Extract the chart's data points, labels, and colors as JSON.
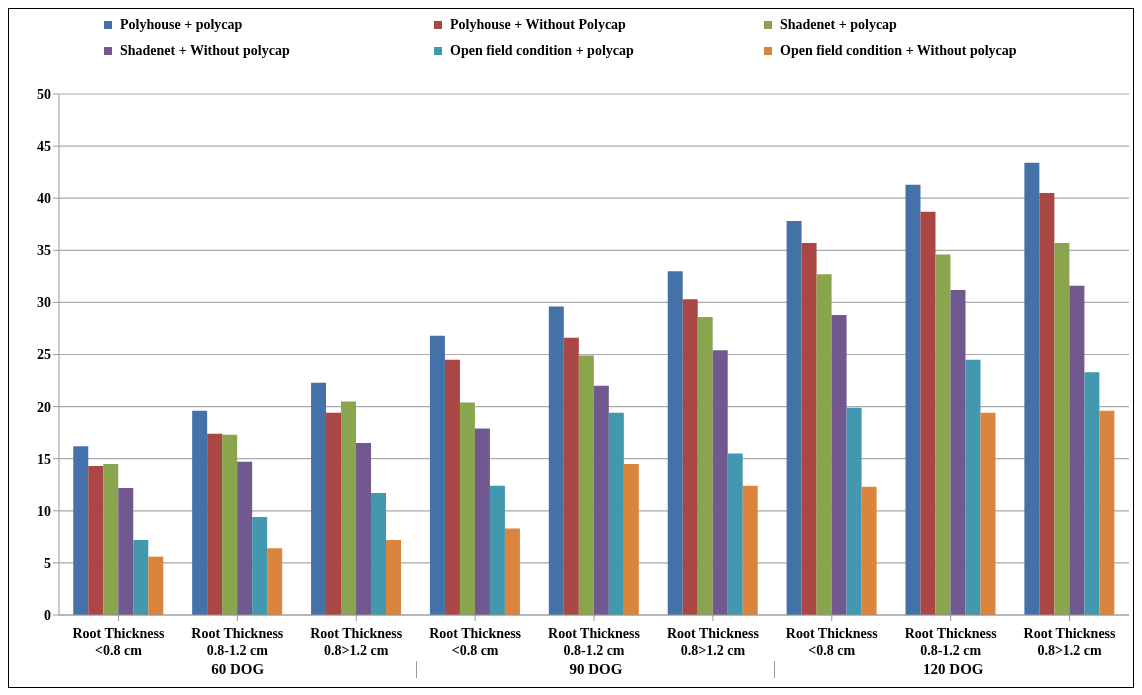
{
  "chart_data": {
    "type": "bar",
    "categories": [
      "Root Thickness\n<0.8 cm",
      "Root Thickness\n0.8-1.2 cm",
      "Root Thickness\n0.8>1.2 cm",
      "Root Thickness\n<0.8 cm",
      "Root Thickness\n0.8-1.2 cm",
      "Root Thickness\n0.8>1.2 cm",
      "Root Thickness\n<0.8 cm",
      "Root Thickness\n0.8-1.2 cm",
      "Root Thickness\n0.8>1.2 cm"
    ],
    "series": [
      {
        "name": "Polyhouse + polycap",
        "color": "#4472a8",
        "values": [
          16.2,
          19.6,
          22.3,
          26.8,
          29.6,
          33.0,
          37.8,
          41.3,
          43.4
        ]
      },
      {
        "name": "Polyhouse + Without Polycap",
        "color": "#aa4643",
        "values": [
          14.3,
          17.4,
          19.4,
          24.5,
          26.6,
          30.3,
          35.7,
          38.7,
          40.5
        ]
      },
      {
        "name": "Shadenet + polycap",
        "color": "#89a54e",
        "values": [
          14.5,
          17.3,
          20.5,
          20.4,
          24.9,
          28.6,
          32.7,
          34.6,
          35.7
        ]
      },
      {
        "name": "Shadenet + Without polycap",
        "color": "#71588f",
        "values": [
          12.2,
          14.7,
          16.5,
          17.9,
          22.0,
          25.4,
          28.8,
          31.2,
          31.6
        ]
      },
      {
        "name": "Open field condition + polycap",
        "color": "#4198af",
        "values": [
          7.2,
          9.4,
          11.7,
          12.4,
          19.4,
          15.5,
          19.9,
          24.5,
          23.3
        ]
      },
      {
        "name": "Open field condition + Without polycap",
        "color": "#db843d",
        "values": [
          5.6,
          6.4,
          7.2,
          8.3,
          14.5,
          12.4,
          12.3,
          19.4,
          19.6
        ]
      }
    ],
    "annotations": [
      "60 DOG",
      "90 DOG",
      "120 DOG"
    ],
    "ylim": [
      0,
      50
    ],
    "yticks": [
      0,
      5,
      10,
      15,
      20,
      25,
      30,
      35,
      40,
      45,
      50
    ],
    "grid": "y",
    "legend": "top"
  }
}
